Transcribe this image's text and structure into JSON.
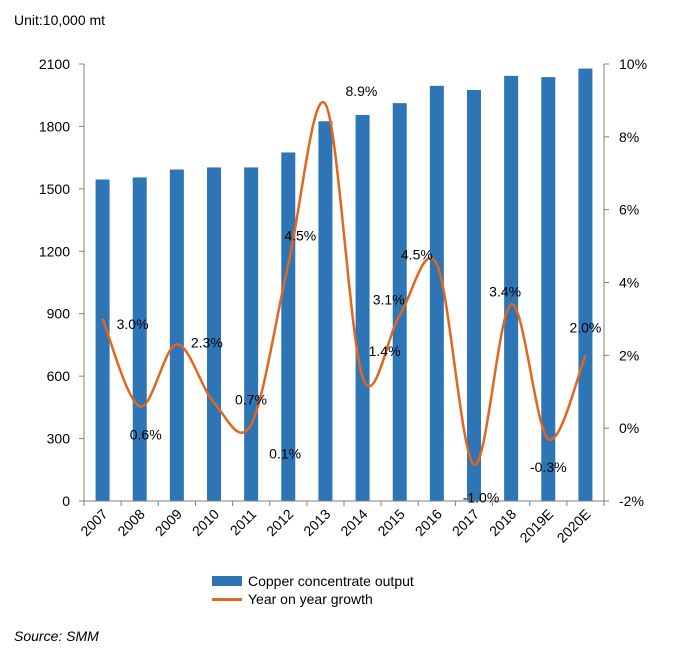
{
  "unit_label": "Unit:10,000 mt",
  "source_label": "Source:  SMM",
  "colors": {
    "bar": "#2E75B6",
    "line": "#E2661C",
    "axis": "#808080",
    "text": "#000000"
  },
  "chart_data": {
    "type": "bar",
    "categories": [
      "2007",
      "2008",
      "2009",
      "2010",
      "2011",
      "2012",
      "2013",
      "2014",
      "2015",
      "2016",
      "2017",
      "2018",
      "2019E",
      "2020E"
    ],
    "series": [
      {
        "name": "Copper concentrate output",
        "type": "bar",
        "axis": "left",
        "values": [
          1545,
          1555,
          1593,
          1603,
          1603,
          1675,
          1825,
          1855,
          1912,
          1995,
          1975,
          2043,
          2037,
          2078
        ]
      },
      {
        "name": "Year on year growth",
        "type": "line",
        "axis": "right",
        "values": [
          3.0,
          0.6,
          2.3,
          0.7,
          0.1,
          4.5,
          8.9,
          1.4,
          3.1,
          4.5,
          -1.0,
          3.4,
          -0.3,
          2.0
        ],
        "labels": [
          "3.0%",
          "0.6%",
          "2.3%",
          "0.7%",
          "0.1%",
          "4.5%",
          "8.9%",
          "1.4%",
          "3.1%",
          "4.5%",
          "-1.0%",
          "3.4%",
          "-0.3%",
          "2.0%"
        ]
      }
    ],
    "ylim_left": [
      0,
      2100
    ],
    "yticks_left": [
      "0",
      "300",
      "600",
      "900",
      "1200",
      "1500",
      "1800",
      "2100"
    ],
    "ylim_right": [
      -2,
      10
    ],
    "yticks_right": [
      "-2%",
      "0%",
      "2%",
      "4%",
      "6%",
      "8%",
      "10%"
    ],
    "legend_position": "bottom"
  }
}
